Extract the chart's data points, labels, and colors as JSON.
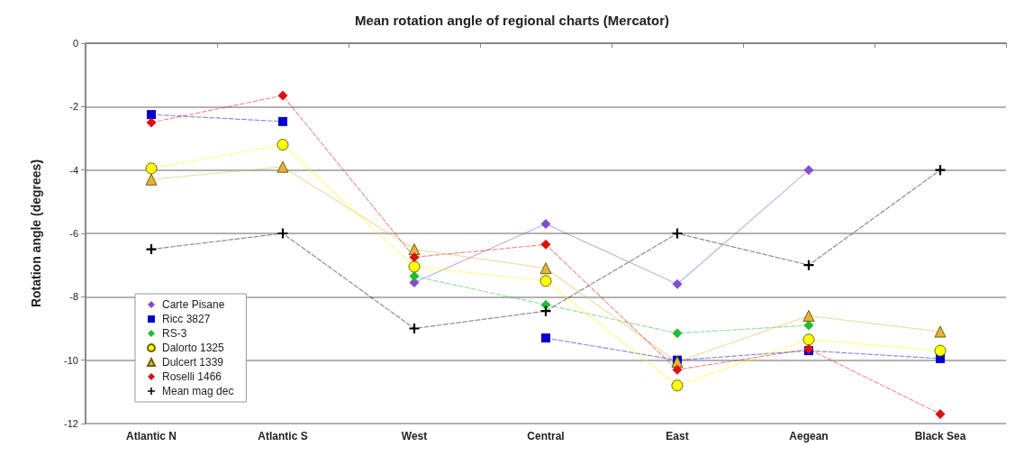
{
  "chart_data": {
    "type": "line",
    "title": "Mean rotation angle of regional charts (Mercator)",
    "ylabel": "Rotation angle (degrees)",
    "categories": [
      "Atlantic N",
      "Atlantic S",
      "West",
      "Central",
      "East",
      "Aegean",
      "Black Sea"
    ],
    "ylim": [
      -12,
      0
    ],
    "yticks": [
      -12,
      -10,
      -8,
      -6,
      -4,
      -2,
      0
    ],
    "grid": "y",
    "legend": "bottom left",
    "series": [
      {
        "name": "Carte Pisane",
        "color": "#7f4fd0",
        "marker": "diamond",
        "line_style": "solid",
        "values": [
          null,
          null,
          -7.55,
          -5.7,
          -7.6,
          -4.0,
          null
        ]
      },
      {
        "name": "Ricc 3827",
        "color": "#0000cc",
        "marker": "square",
        "line_style": "dashed",
        "values": [
          -2.25,
          -2.47,
          null,
          -9.3,
          -10.0,
          -9.7,
          -9.95
        ]
      },
      {
        "name": "RS-3",
        "color": "#22bb33",
        "marker": "diamond",
        "line_style": "dashed",
        "values": [
          null,
          null,
          -7.35,
          -8.25,
          -9.15,
          -8.9,
          null
        ]
      },
      {
        "name": "Dalorto 1325",
        "color": "#ffff00",
        "marker": "circle",
        "line_style": "solid",
        "values": [
          -3.95,
          -3.2,
          -7.05,
          -7.5,
          -10.8,
          -9.35,
          -9.7
        ]
      },
      {
        "name": "Dulcert 1339",
        "color": "#e8b040",
        "marker": "triangle",
        "line_style": "solid",
        "values": [
          -4.3,
          -3.9,
          -6.5,
          -7.1,
          -10.05,
          -8.6,
          -9.1
        ]
      },
      {
        "name": "Roselli 1466",
        "color": "#dd1111",
        "marker": "diamond",
        "line_style": "dashed",
        "values": [
          -2.5,
          -1.65,
          -6.75,
          -6.35,
          -10.3,
          -9.65,
          -11.7
        ]
      },
      {
        "name": "Mean mag dec",
        "color": "#000000",
        "marker": "cross",
        "line_style": "dashed",
        "values": [
          -6.5,
          -6.0,
          -9.0,
          -8.45,
          -6.0,
          -7.0,
          -4.0
        ]
      }
    ]
  }
}
